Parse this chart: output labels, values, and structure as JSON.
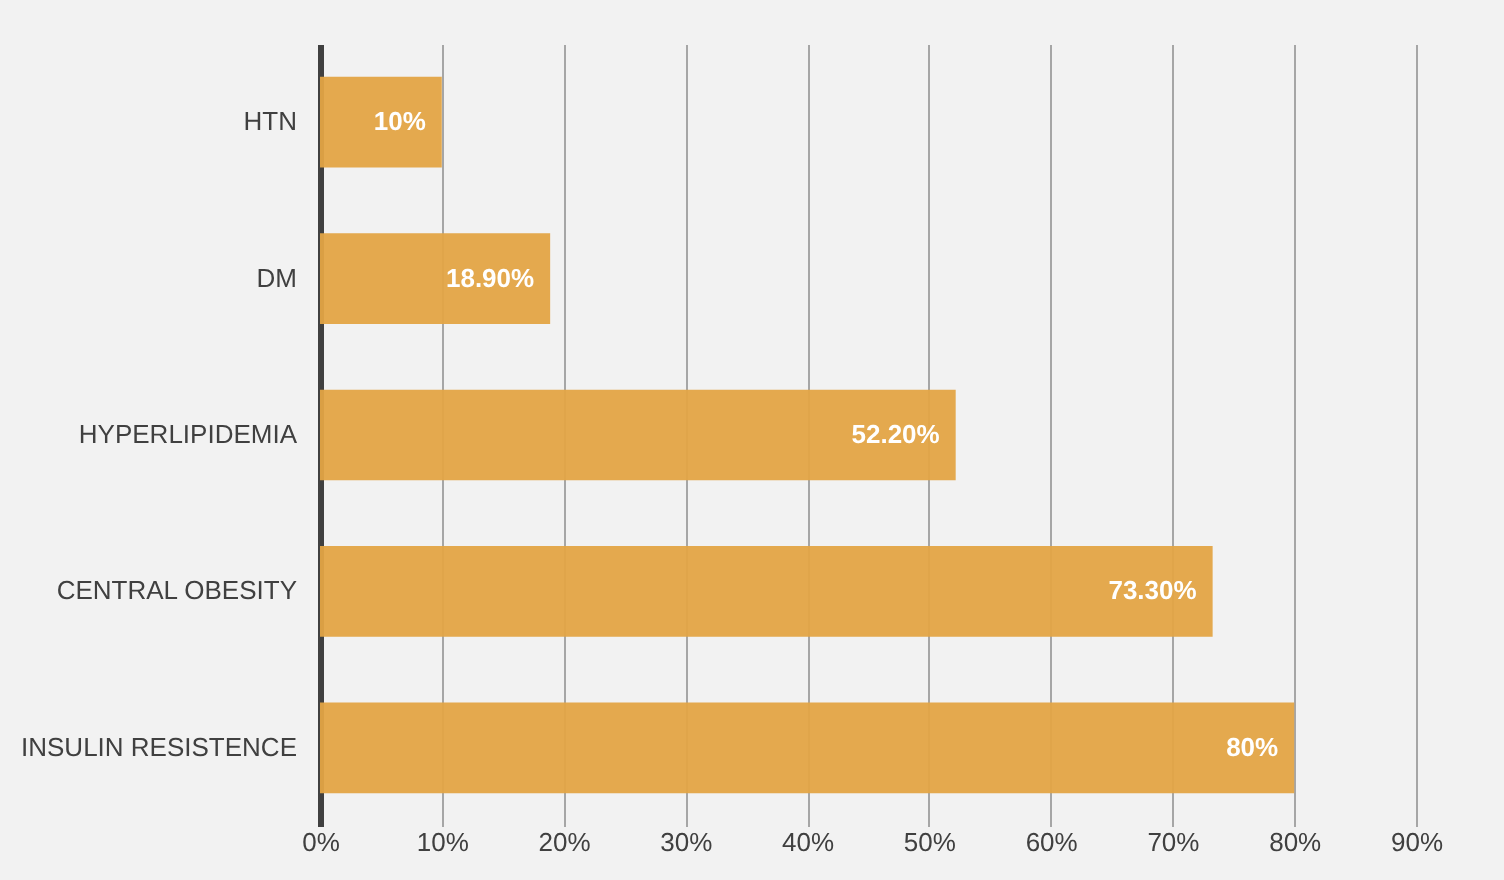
{
  "chart_data": {
    "type": "bar",
    "orientation": "horizontal",
    "categories": [
      "HTN",
      "DM",
      "HYPERLIPIDEMIA",
      "CENTRAL OBESITY",
      "INSULIN RESISTENCE"
    ],
    "values": [
      10,
      18.9,
      52.2,
      73.3,
      80
    ],
    "value_labels": [
      "10%",
      "18.90%",
      "52.20%",
      "73.30%",
      "80%"
    ],
    "color": "#e3a444",
    "xlim": [
      0,
      90
    ],
    "xticks": [
      {
        "value": 0,
        "label": "0%"
      },
      {
        "value": 10,
        "label": "10%"
      },
      {
        "value": 20,
        "label": "20%"
      },
      {
        "value": 30,
        "label": "30%"
      },
      {
        "value": 40,
        "label": "40%"
      },
      {
        "value": 50,
        "label": "50%"
      },
      {
        "value": 60,
        "label": "60%"
      },
      {
        "value": 70,
        "label": "70%"
      },
      {
        "value": 80,
        "label": "80%"
      },
      {
        "value": 90,
        "label": "90%"
      }
    ],
    "grid": "x"
  }
}
